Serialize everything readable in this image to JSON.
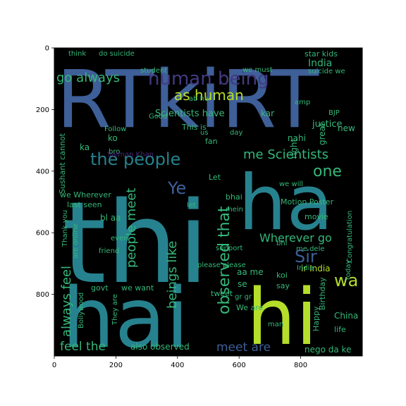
{
  "axes": {
    "x_ticks": [
      "0",
      "200",
      "400",
      "600",
      "800"
    ],
    "y_ticks": [
      "0",
      "200",
      "400",
      "600",
      "800"
    ],
    "background": "#000000",
    "frame_color": "#000000"
  },
  "palette": {
    "blue": "#3e5f98",
    "teal": "#26828e",
    "green": "#35b779",
    "lime": "#b5de2b",
    "purple": "#482677",
    "dark_purple": "#443a83"
  },
  "words": [
    {
      "text": "RTkiRT",
      "color": "blue"
    },
    {
      "text": "thi",
      "color": "teal"
    },
    {
      "text": "ha",
      "color": "teal"
    },
    {
      "text": "hai",
      "color": "teal"
    },
    {
      "text": "hi",
      "color": "lime"
    },
    {
      "text": "human being",
      "color": "dark_purple"
    },
    {
      "text": "go always",
      "color": "green"
    },
    {
      "text": "as human",
      "color": "lime"
    },
    {
      "text": "the people",
      "color": "teal"
    },
    {
      "text": "me Scientists",
      "color": "green"
    },
    {
      "text": "one",
      "color": "green"
    },
    {
      "text": "Ye",
      "color": "blue"
    },
    {
      "text": "Sir",
      "color": "blue"
    },
    {
      "text": "wa",
      "color": "lime"
    },
    {
      "text": "observed that",
      "color": "green"
    },
    {
      "text": "people meet",
      "color": "green"
    },
    {
      "text": "beings like",
      "color": "green"
    },
    {
      "text": "always feel",
      "color": "green"
    },
    {
      "text": "feel the",
      "color": "green"
    },
    {
      "text": "Wherever go",
      "color": "green"
    },
    {
      "text": "meet are",
      "color": "blue"
    },
    {
      "text": "India",
      "color": "green"
    },
    {
      "text": "Scientists have",
      "color": "green"
    },
    {
      "text": "star kids",
      "color": "green"
    },
    {
      "text": "do suicide",
      "color": "green"
    },
    {
      "text": "think",
      "color": "green"
    },
    {
      "text": "we must",
      "color": "green"
    },
    {
      "text": "suicide we",
      "color": "green"
    },
    {
      "text": "student",
      "color": "green"
    },
    {
      "text": "Good",
      "color": "green"
    },
    {
      "text": "This is",
      "color": "green"
    },
    {
      "text": "ab ho",
      "color": "green"
    },
    {
      "text": "ko",
      "color": "green"
    },
    {
      "text": "kar",
      "color": "green"
    },
    {
      "text": "amp",
      "color": "green"
    },
    {
      "text": "BJP",
      "color": "green"
    },
    {
      "text": "nahi",
      "color": "green"
    },
    {
      "text": "justice",
      "color": "green"
    },
    {
      "text": "new",
      "color": "green"
    },
    {
      "text": "Follow",
      "color": "green"
    },
    {
      "text": "day",
      "color": "green"
    },
    {
      "text": "us",
      "color": "green"
    },
    {
      "text": "fan",
      "color": "green"
    },
    {
      "text": "bro",
      "color": "green"
    },
    {
      "text": "ka",
      "color": "green"
    },
    {
      "text": "Salman Khan",
      "color": "purple"
    },
    {
      "text": "great",
      "color": "green"
    },
    {
      "text": "right",
      "color": "green"
    },
    {
      "text": "Sushant cannot",
      "color": "green"
    },
    {
      "text": "we Wherever",
      "color": "green"
    },
    {
      "text": "last seen",
      "color": "green"
    },
    {
      "text": "Let",
      "color": "green"
    },
    {
      "text": "bhai",
      "color": "green"
    },
    {
      "text": "we will",
      "color": "green"
    },
    {
      "text": "mein",
      "color": "green"
    },
    {
      "text": "Motion Poster",
      "color": "green"
    },
    {
      "text": "bl aa",
      "color": "green"
    },
    {
      "text": "Thank you",
      "color": "green"
    },
    {
      "text": "movie",
      "color": "green"
    },
    {
      "text": "Congratulation",
      "color": "green"
    },
    {
      "text": "bhi",
      "color": "green"
    },
    {
      "text": "are online",
      "color": "green"
    },
    {
      "text": "even",
      "color": "green"
    },
    {
      "text": "friend",
      "color": "green"
    },
    {
      "text": "support",
      "color": "green"
    },
    {
      "text": "please please",
      "color": "green"
    },
    {
      "text": "me dele",
      "color": "green"
    },
    {
      "text": "today",
      "color": "green"
    },
    {
      "text": "ir India",
      "color": "lime"
    },
    {
      "text": "koi",
      "color": "green"
    },
    {
      "text": "Birthday",
      "color": "green"
    },
    {
      "text": "Happy",
      "color": "green"
    },
    {
      "text": "aa me",
      "color": "green"
    },
    {
      "text": "say",
      "color": "green"
    },
    {
      "text": "govt",
      "color": "green"
    },
    {
      "text": "we want",
      "color": "green"
    },
    {
      "text": "tweet",
      "color": "green"
    },
    {
      "text": "gr gr",
      "color": "green"
    },
    {
      "text": "We are",
      "color": "green"
    },
    {
      "text": "man",
      "color": "green"
    },
    {
      "text": "China",
      "color": "green"
    },
    {
      "text": "life",
      "color": "green"
    },
    {
      "text": "Bollywood",
      "color": "green"
    },
    {
      "text": "They are",
      "color": "green"
    },
    {
      "text": "also observed",
      "color": "green"
    },
    {
      "text": "nego da ke",
      "color": "green"
    },
    {
      "text": "se",
      "color": "green"
    },
    {
      "text": "India",
      "color": "green"
    },
    {
      "text": "let",
      "color": "green"
    }
  ]
}
